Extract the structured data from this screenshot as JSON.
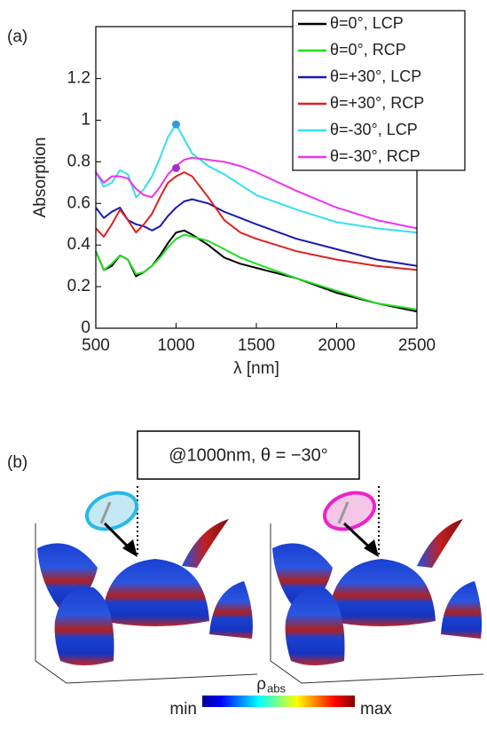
{
  "chart_data": {
    "type": "line",
    "panel_label": "(a)",
    "x_label": "λ [nm]",
    "y_label": "Absorption",
    "x": [
      500,
      550,
      600,
      650,
      700,
      750,
      800,
      850,
      900,
      950,
      1000,
      1050,
      1100,
      1200,
      1300,
      1400,
      1500,
      1750,
      2000,
      2250,
      2500
    ],
    "series": [
      {
        "name": "θ=0°, LCP",
        "color": "#000000",
        "values": [
          0.37,
          0.28,
          0.3,
          0.35,
          0.33,
          0.25,
          0.27,
          0.3,
          0.35,
          0.41,
          0.46,
          0.47,
          0.45,
          0.4,
          0.34,
          0.31,
          0.29,
          0.24,
          0.17,
          0.12,
          0.08
        ]
      },
      {
        "name": "θ=0°, RCP",
        "color": "#22dd22",
        "values": [
          0.37,
          0.28,
          0.31,
          0.35,
          0.33,
          0.26,
          0.27,
          0.3,
          0.34,
          0.39,
          0.43,
          0.45,
          0.44,
          0.42,
          0.38,
          0.34,
          0.31,
          0.24,
          0.18,
          0.12,
          0.09
        ]
      },
      {
        "name": "θ=+30°, LCP",
        "color": "#1a1ab4",
        "values": [
          0.58,
          0.53,
          0.56,
          0.58,
          0.52,
          0.5,
          0.49,
          0.47,
          0.49,
          0.54,
          0.58,
          0.61,
          0.62,
          0.6,
          0.56,
          0.53,
          0.5,
          0.43,
          0.38,
          0.33,
          0.3
        ]
      },
      {
        "name": "θ=+30°, RCP",
        "color": "#e02020",
        "values": [
          0.48,
          0.44,
          0.5,
          0.57,
          0.52,
          0.46,
          0.5,
          0.55,
          0.63,
          0.7,
          0.73,
          0.75,
          0.73,
          0.63,
          0.52,
          0.46,
          0.43,
          0.37,
          0.33,
          0.3,
          0.28
        ]
      },
      {
        "name": "θ=-30°, LCP",
        "color": "#33e0ee",
        "values": [
          0.75,
          0.68,
          0.7,
          0.76,
          0.74,
          0.63,
          0.67,
          0.73,
          0.82,
          0.92,
          0.98,
          0.91,
          0.84,
          0.78,
          0.74,
          0.69,
          0.64,
          0.57,
          0.51,
          0.48,
          0.46
        ]
      },
      {
        "name": "θ=-30°, RCP",
        "color": "#ee33ee",
        "values": [
          0.75,
          0.7,
          0.73,
          0.73,
          0.72,
          0.67,
          0.64,
          0.63,
          0.68,
          0.74,
          0.78,
          0.81,
          0.82,
          0.81,
          0.8,
          0.78,
          0.75,
          0.66,
          0.58,
          0.52,
          0.48
        ]
      }
    ],
    "markers": [
      {
        "x": 1000,
        "y": 0.98,
        "color": "#2a9fd6"
      },
      {
        "x": 1000,
        "y": 0.77,
        "color": "#a030c8"
      }
    ],
    "xlim": [
      500,
      2500
    ],
    "xticks": [
      500,
      1000,
      1500,
      2000,
      2500
    ],
    "ylim": [
      0,
      1.45
    ],
    "yticks": [
      0,
      0.2,
      0.4,
      0.6,
      0.8,
      1,
      1.2
    ],
    "legend": "top-right"
  },
  "panel_b": {
    "label": "(b)",
    "annotation": "@1000nm, θ = −30°",
    "colorbar": {
      "min": "min",
      "max": "max",
      "symbol": "ρ",
      "subscript": "abs"
    }
  }
}
